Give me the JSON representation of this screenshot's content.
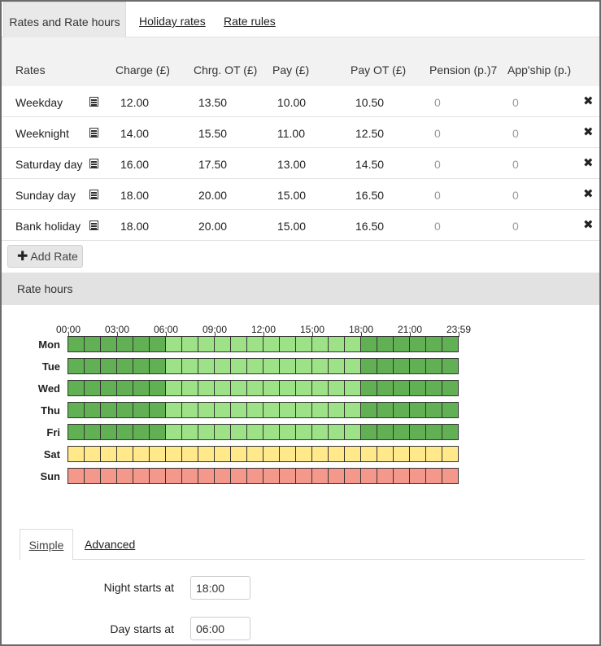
{
  "top_tabs": [
    {
      "label": "Rates and Rate hours",
      "active": true
    },
    {
      "label": "Holiday rates",
      "active": false
    },
    {
      "label": "Rate rules",
      "active": false
    }
  ],
  "rates_table": {
    "headers": [
      "Rates",
      "Charge (£)",
      "Chrg. OT (£)",
      "Pay (£)",
      "Pay OT (£)",
      "Pension (p.)7",
      "App'ship (p.)"
    ],
    "rows": [
      {
        "name": "Weekday",
        "charge": "12.00",
        "charge_ot": "13.50",
        "pay": "10.00",
        "pay_ot": "10.50",
        "pension": "0",
        "appship": "0"
      },
      {
        "name": "Weeknight",
        "charge": "14.00",
        "charge_ot": "15.50",
        "pay": "11.00",
        "pay_ot": "12.50",
        "pension": "0",
        "appship": "0"
      },
      {
        "name": "Saturday day",
        "charge": "16.00",
        "charge_ot": "17.50",
        "pay": "13.00",
        "pay_ot": "14.50",
        "pension": "0",
        "appship": "0"
      },
      {
        "name": "Sunday day",
        "charge": "18.00",
        "charge_ot": "20.00",
        "pay": "15.00",
        "pay_ot": "16.50",
        "pension": "0",
        "appship": "0"
      },
      {
        "name": "Bank holiday",
        "charge": "18.00",
        "charge_ot": "20.00",
        "pay": "15.00",
        "pay_ot": "16.50",
        "pension": "0",
        "appship": "0"
      }
    ],
    "row_icon": "notes-icon",
    "delete_icon": "close-icon",
    "delete_glyph": "✖"
  },
  "add_rate": {
    "plus_glyph": "✚",
    "label": "Add Rate"
  },
  "rate_hours": {
    "title": "Rate hours",
    "time_labels": [
      "00:00",
      "03:00",
      "06:00",
      "09:00",
      "12:00",
      "15:00",
      "18:00",
      "21:00",
      "23:59"
    ],
    "days": [
      {
        "label": "Mon",
        "pattern": "weekday"
      },
      {
        "label": "Tue",
        "pattern": "weekday"
      },
      {
        "label": "Wed",
        "pattern": "weekday"
      },
      {
        "label": "Thu",
        "pattern": "weekday"
      },
      {
        "label": "Fri",
        "pattern": "weekday"
      },
      {
        "label": "Sat",
        "pattern": "saturday"
      },
      {
        "label": "Sun",
        "pattern": "sunday"
      }
    ],
    "colors": {
      "night": "#62b054",
      "day": "#9ee287",
      "saturday": "#ffe98a",
      "sunday": "#f5988c"
    }
  },
  "sub_tabs": [
    {
      "label": "Simple",
      "active": true
    },
    {
      "label": "Advanced",
      "active": false
    }
  ],
  "form": {
    "night_label": "Night starts at",
    "night_value": "18:00",
    "day_label": "Day starts at",
    "day_value": "06:00"
  }
}
